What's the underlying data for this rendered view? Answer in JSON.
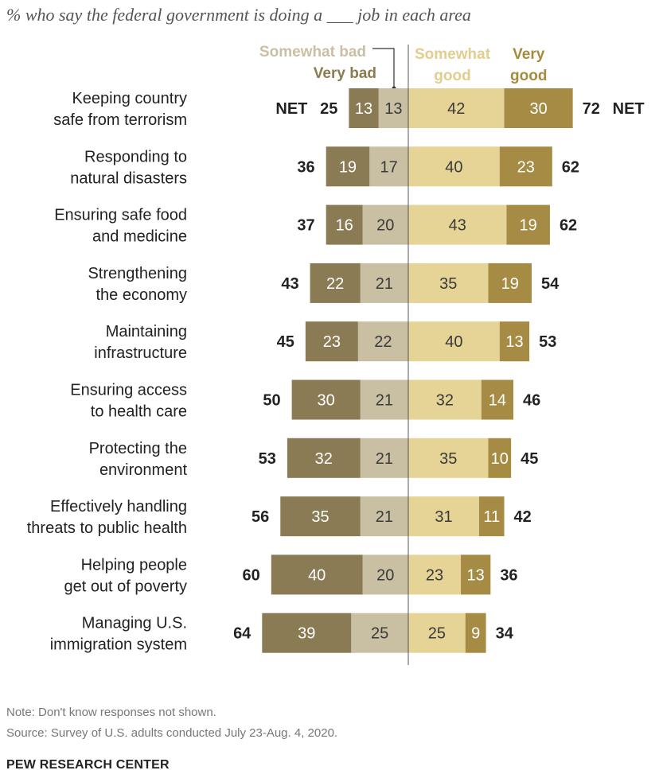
{
  "chart_data": {
    "type": "bar",
    "subtitle": "% who say the federal government is doing a ___ job in each area",
    "categories": [
      "Keeping country\nsafe from terrorism",
      "Responding to\nnatural disasters",
      "Ensuring safe food\nand medicine",
      "Strengthening\nthe economy",
      "Maintaining\ninfrastructure",
      "Ensuring access\nto health care",
      "Protecting the\nenvironment",
      "Effectively handling\nthreats to public health",
      "Helping people\nget out of poverty",
      "Managing U.S.\nimmigration system"
    ],
    "series": [
      {
        "name": "Very bad",
        "values": [
          13,
          19,
          16,
          22,
          23,
          30,
          32,
          35,
          40,
          39
        ]
      },
      {
        "name": "Somewhat bad",
        "values": [
          13,
          17,
          20,
          21,
          22,
          21,
          21,
          21,
          20,
          25
        ]
      },
      {
        "name": "Somewhat good",
        "values": [
          42,
          40,
          43,
          35,
          40,
          32,
          35,
          31,
          23,
          25
        ]
      },
      {
        "name": "Very good",
        "values": [
          30,
          23,
          19,
          19,
          13,
          14,
          10,
          11,
          13,
          9
        ]
      }
    ],
    "net_bad": [
      25,
      36,
      37,
      43,
      45,
      50,
      53,
      56,
      60,
      64
    ],
    "net_good": [
      72,
      62,
      62,
      54,
      53,
      46,
      45,
      42,
      36,
      34
    ],
    "net_label": "NET",
    "legend": {
      "somewhat_bad": "Somewhat bad",
      "very_bad": "Very bad",
      "somewhat_good": "Somewhat\ngood",
      "very_good": "Very\ngood"
    },
    "colors": {
      "very_bad": "#8b7b55",
      "somewhat_bad": "#c9bfa3",
      "somewhat_good": "#e6d396",
      "very_good": "#a68b45"
    },
    "layout": "diverging stacked bar, centered at zero"
  },
  "notes": {
    "note": "Note: Don't know responses not shown.",
    "source": "Source: Survey of U.S. adults conducted July 23-Aug. 4, 2020."
  },
  "brand": "PEW RESEARCH CENTER"
}
